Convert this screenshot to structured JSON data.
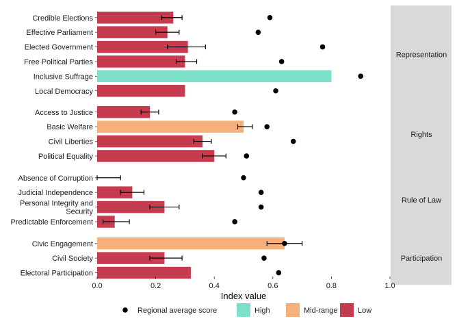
{
  "chart_data": {
    "type": "bar",
    "orientation": "horizontal",
    "xlabel": "Index value",
    "xlim": [
      0,
      1
    ],
    "xticks": [
      "0.0",
      "0.2",
      "0.4",
      "0.6",
      "0.8",
      "1.0"
    ],
    "grid": false,
    "legend_position": "bottom",
    "legend": {
      "dot_label": "Regional average score",
      "categories": [
        {
          "name": "High",
          "color": "#7ee0ca"
        },
        {
          "name": "Mid-range",
          "color": "#f5b07c"
        },
        {
          "name": "Low",
          "color": "#c73b4f"
        }
      ]
    },
    "panels": [
      {
        "name": "Representation",
        "rows": [
          {
            "label": [
              "Credible Elections"
            ],
            "value": 0.26,
            "err_low": 0.22,
            "err_high": 0.29,
            "regional": 0.59,
            "category": "Low"
          },
          {
            "label": [
              "Effective Parliament"
            ],
            "value": 0.24,
            "err_low": 0.2,
            "err_high": 0.28,
            "regional": 0.55,
            "category": "Low"
          },
          {
            "label": [
              "Elected Government"
            ],
            "value": 0.31,
            "err_low": 0.24,
            "err_high": 0.37,
            "regional": 0.77,
            "category": "Low"
          },
          {
            "label": [
              "Free Political Parties"
            ],
            "value": 0.3,
            "err_low": 0.27,
            "err_high": 0.34,
            "regional": 0.63,
            "category": "Low"
          },
          {
            "label": [
              "Inclusive Suffrage"
            ],
            "value": 0.8,
            "err_low": null,
            "err_high": null,
            "regional": 0.9,
            "category": "High"
          },
          {
            "label": [
              "Local Democracy"
            ],
            "value": 0.3,
            "err_low": null,
            "err_high": null,
            "regional": 0.61,
            "category": "Low"
          }
        ]
      },
      {
        "name": "Rights",
        "rows": [
          {
            "label": [
              "Access to Justice"
            ],
            "value": 0.18,
            "err_low": 0.15,
            "err_high": 0.21,
            "regional": 0.47,
            "category": "Low"
          },
          {
            "label": [
              "Basic Welfare"
            ],
            "value": 0.5,
            "err_low": 0.48,
            "err_high": 0.53,
            "regional": 0.58,
            "category": "Mid-range"
          },
          {
            "label": [
              "Civil Liberties"
            ],
            "value": 0.36,
            "err_low": 0.33,
            "err_high": 0.39,
            "regional": 0.67,
            "category": "Low"
          },
          {
            "label": [
              "Political Equality"
            ],
            "value": 0.4,
            "err_low": 0.36,
            "err_high": 0.44,
            "regional": 0.51,
            "category": "Low"
          }
        ]
      },
      {
        "name": "Rule of Law",
        "rows": [
          {
            "label": [
              "Absence of Corruption"
            ],
            "value": 0.0,
            "err_low": 0.0,
            "err_high": 0.08,
            "regional": 0.5,
            "category": "Low"
          },
          {
            "label": [
              "Judicial Independence"
            ],
            "value": 0.12,
            "err_low": 0.08,
            "err_high": 0.16,
            "regional": 0.56,
            "category": "Low"
          },
          {
            "label": [
              "Personal Integrity and",
              "Security"
            ],
            "value": 0.23,
            "err_low": 0.18,
            "err_high": 0.28,
            "regional": 0.56,
            "category": "Low"
          },
          {
            "label": [
              "Predictable Enforcement"
            ],
            "value": 0.06,
            "err_low": 0.02,
            "err_high": 0.11,
            "regional": 0.47,
            "category": "Low"
          }
        ]
      },
      {
        "name": "Participation",
        "rows": [
          {
            "label": [
              "Civic Engagement"
            ],
            "value": 0.64,
            "err_low": 0.58,
            "err_high": 0.7,
            "regional": 0.64,
            "category": "Mid-range"
          },
          {
            "label": [
              "Civil Society"
            ],
            "value": 0.23,
            "err_low": 0.18,
            "err_high": 0.29,
            "regional": 0.57,
            "category": "Low"
          },
          {
            "label": [
              "Electoral Participation"
            ],
            "value": 0.32,
            "err_low": null,
            "err_high": null,
            "regional": 0.62,
            "category": "Low"
          }
        ]
      }
    ]
  }
}
